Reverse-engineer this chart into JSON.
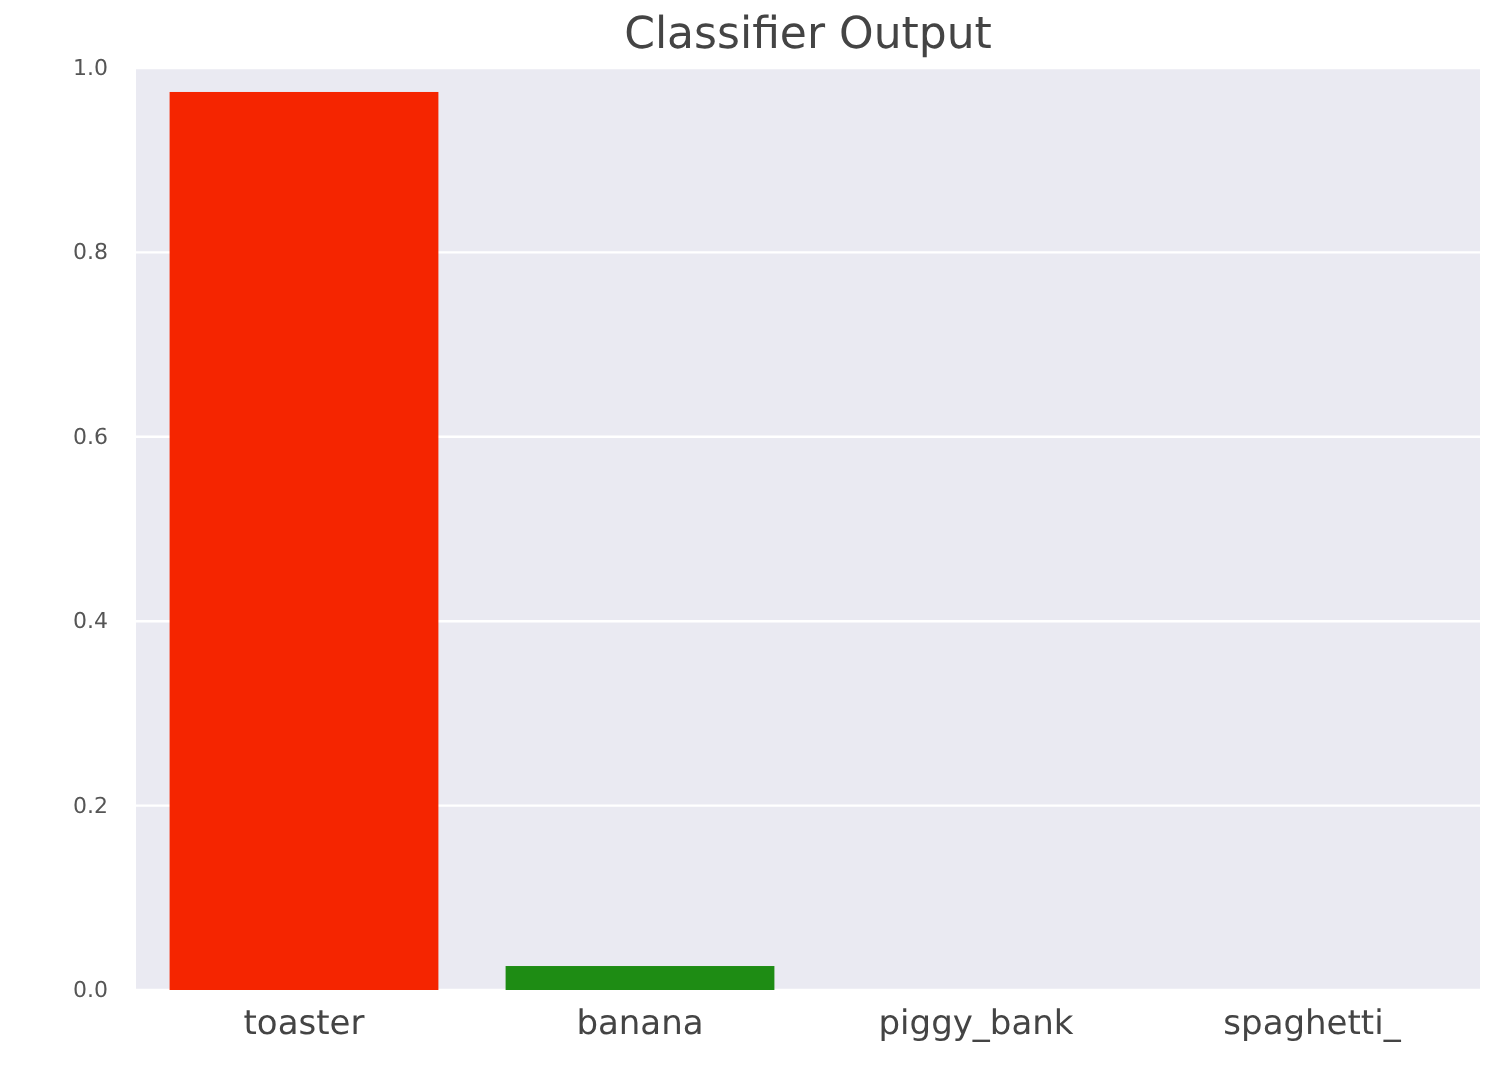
{
  "chart_data": {
    "type": "bar",
    "title": "Classifier Output",
    "categories": [
      "toaster",
      "banana",
      "piggy_bank",
      "spaghetti_"
    ],
    "values": [
      0.974,
      0.026,
      null,
      null
    ],
    "colors": [
      "#f52500",
      "#1e8c14",
      null,
      null
    ],
    "ylim": [
      0,
      1
    ],
    "yticks": [
      {
        "value": 0,
        "label": "0.0"
      },
      {
        "value": 0.2,
        "label": "0.2"
      },
      {
        "value": 0.4,
        "label": "0.4"
      },
      {
        "value": 0.6,
        "label": "0.6"
      },
      {
        "value": 0.8,
        "label": "0.8"
      },
      {
        "value": 1,
        "label": "1.0"
      }
    ],
    "grid": "y"
  }
}
